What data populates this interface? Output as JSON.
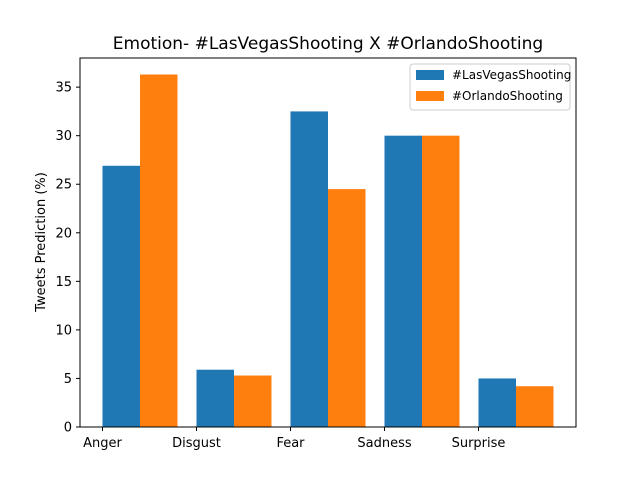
{
  "chart_data": {
    "type": "bar",
    "title": "Emotion- #LasVegasShooting X #OrlandoShooting",
    "xlabel": "",
    "ylabel": "Tweets Prediction (%)",
    "categories": [
      "Anger",
      "Disgust",
      "Fear",
      "Sadness",
      "Surprise"
    ],
    "series": [
      {
        "name": "#LasVegasShooting",
        "color": "#1f77b4",
        "values": [
          26.9,
          5.9,
          32.5,
          30.0,
          5.0
        ]
      },
      {
        "name": "#OrlandoShooting",
        "color": "#ff7f0e",
        "values": [
          36.3,
          5.3,
          24.5,
          30.0,
          4.2
        ]
      }
    ],
    "ylim": [
      0,
      38
    ],
    "yticks": [
      0,
      5,
      10,
      15,
      20,
      25,
      30,
      35
    ],
    "grid": false,
    "legend_position": "top-right"
  }
}
